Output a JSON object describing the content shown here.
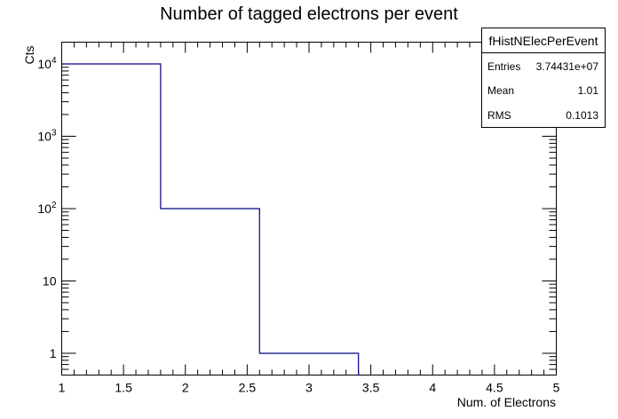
{
  "chart_data": {
    "type": "histogram",
    "title": "Number of tagged electrons per event",
    "xlabel": "Num. of Electrons",
    "ylabel": "Cts",
    "xlim": [
      1,
      5
    ],
    "ylim": [
      0.5,
      20000
    ],
    "yscale": "log",
    "grid": false,
    "x_ticks": [
      {
        "v": 1,
        "label": "1"
      },
      {
        "v": 1.5,
        "label": "1.5"
      },
      {
        "v": 2,
        "label": "2"
      },
      {
        "v": 2.5,
        "label": "2.5"
      },
      {
        "v": 3,
        "label": "3"
      },
      {
        "v": 3.5,
        "label": "3.5"
      },
      {
        "v": 4,
        "label": "4"
      },
      {
        "v": 4.5,
        "label": "4.5"
      },
      {
        "v": 5,
        "label": "5"
      }
    ],
    "y_ticks": [
      {
        "v": 1,
        "base": "1",
        "exp": ""
      },
      {
        "v": 10,
        "base": "10",
        "exp": ""
      },
      {
        "v": 100,
        "base": "10",
        "exp": "2"
      },
      {
        "v": 1000,
        "base": "10",
        "exp": "3"
      },
      {
        "v": 10000,
        "base": "10",
        "exp": "4"
      }
    ],
    "bins": [
      {
        "x0": 1.0,
        "x1": 1.8,
        "count": 10000
      },
      {
        "x0": 1.8,
        "x1": 2.6,
        "count": 100
      },
      {
        "x0": 2.6,
        "x1": 3.4,
        "count": 1
      },
      {
        "x0": 3.4,
        "x1": 4.2,
        "count": 0
      },
      {
        "x0": 4.2,
        "x1": 5.0,
        "count": 0
      }
    ],
    "line_color": "#000080",
    "stats_box": {
      "name": "fHistNElecPerEvent",
      "rows": [
        {
          "label": "Entries",
          "value": "3.74431e+07"
        },
        {
          "label": "Mean",
          "value": "1.01"
        },
        {
          "label": "RMS",
          "value": "0.1013"
        }
      ]
    }
  }
}
